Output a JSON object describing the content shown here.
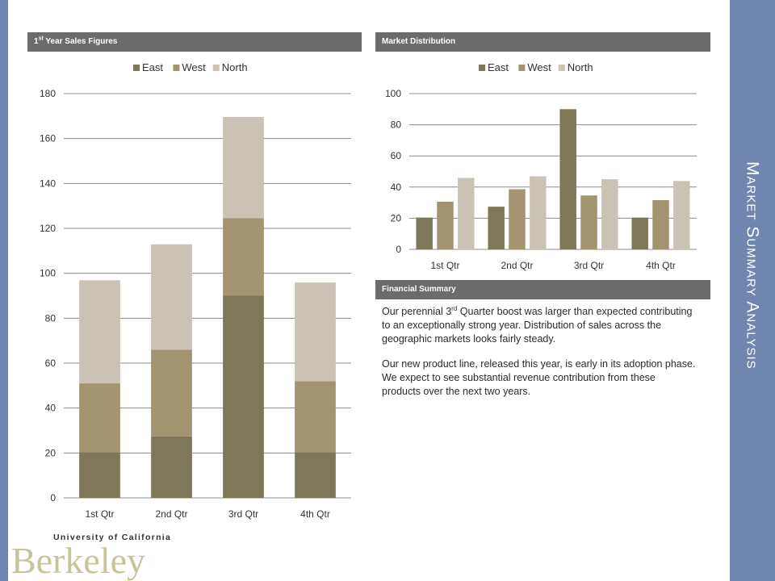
{
  "sidebar": {
    "title": "Market Summary Analysis"
  },
  "headers": {
    "sales_prefix": "1",
    "sales_sup": "st",
    "sales_suffix": " Year Sales Figures",
    "market": "Market Distribution",
    "financial": "Financial Summary"
  },
  "summary": {
    "p1_prefix": "Our perennial 3",
    "p1_sup": "rd",
    "p1_suffix": " Quarter boost was larger than expected contributing to an exceptionally strong year. Distribution of sales across the geographic markets looks fairly steady.",
    "p2": "Our new product line, released this year, is early in its adoption phase. We expect to see substantial revenue contribution from these products over the next two years."
  },
  "logo": {
    "line1": "University of California",
    "line2": "Berkeley"
  },
  "colors": {
    "east": "#7e775a",
    "west": "#a29470",
    "north": "#cac3b5",
    "bar": "#6f86ae",
    "header": "#6b6b6b"
  },
  "chart_data": [
    {
      "type": "bar",
      "stacked": true,
      "categories": [
        "1st Qtr",
        "2nd Qtr",
        "3rd Qtr",
        "4th Qtr"
      ],
      "series": [
        {
          "name": "East",
          "values": [
            20.4,
            27.4,
            90,
            20.4
          ]
        },
        {
          "name": "West",
          "values": [
            30.6,
            38.6,
            34.6,
            31.6
          ]
        },
        {
          "name": "North",
          "values": [
            45.9,
            46.9,
            45,
            43.9
          ]
        }
      ],
      "ylim": [
        0,
        180
      ],
      "yticks": [
        0,
        20,
        40,
        60,
        80,
        100,
        120,
        140,
        160,
        180
      ],
      "legend": "top",
      "grid": true
    },
    {
      "type": "bar",
      "stacked": false,
      "categories": [
        "1st Qtr",
        "2nd Qtr",
        "3rd Qtr",
        "4th Qtr"
      ],
      "series": [
        {
          "name": "East",
          "values": [
            20.4,
            27.4,
            90,
            20.4
          ]
        },
        {
          "name": "West",
          "values": [
            30.6,
            38.6,
            34.6,
            31.6
          ]
        },
        {
          "name": "North",
          "values": [
            45.9,
            46.9,
            45,
            43.9
          ]
        }
      ],
      "ylim": [
        0,
        100
      ],
      "yticks": [
        0,
        20,
        40,
        60,
        80,
        100
      ],
      "legend": "top",
      "grid": true
    }
  ]
}
